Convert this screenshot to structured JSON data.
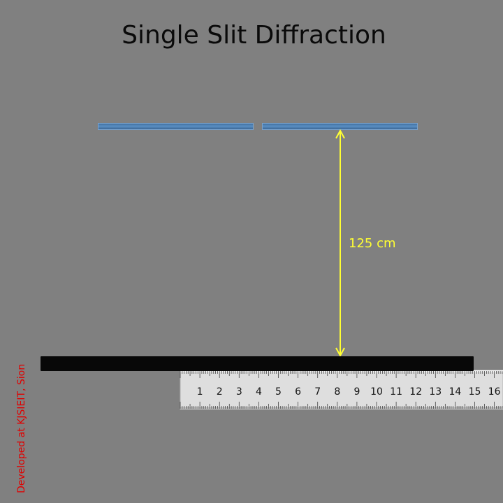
{
  "title": "Single Slit Diffraction",
  "distance_label": "125 cm",
  "ruler": {
    "numbers": [
      "1",
      "2",
      "3",
      "4",
      "5",
      "6",
      "7",
      "8",
      "9",
      "10",
      "11",
      "12",
      "13",
      "14",
      "15",
      "16"
    ]
  },
  "credit": "Developed at KJSIEIT, Sion",
  "colors": {
    "background": "#808080",
    "slit": "#4a7cb0",
    "arrow": "#ffff33",
    "credit": "#e00000"
  }
}
